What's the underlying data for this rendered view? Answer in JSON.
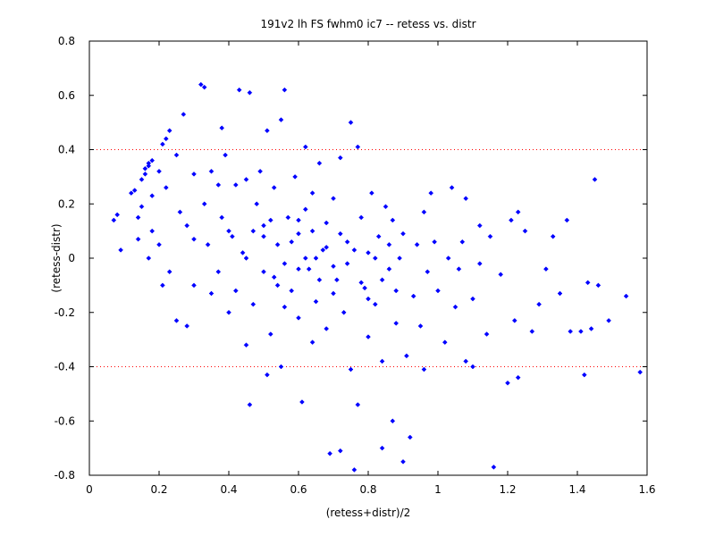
{
  "chart_data": {
    "type": "scatter",
    "title": "191v2 lh FS fwhm0 ic7 -- retess vs. distr",
    "xlabel": "(retess+distr)/2",
    "ylabel": "(retess-distr)",
    "xlim": [
      0,
      1.6
    ],
    "ylim": [
      -0.8,
      0.8
    ],
    "xticks": [
      0,
      0.2,
      0.4,
      0.6,
      0.8,
      1,
      1.2,
      1.4,
      1.6
    ],
    "xtick_labels": [
      "0",
      "0.2",
      "0.4",
      "0.6",
      "0.8",
      "1",
      "1.2",
      "1.4",
      "1.6"
    ],
    "yticks": [
      -0.8,
      -0.6,
      -0.4,
      -0.2,
      0,
      0.2,
      0.4,
      0.6,
      0.8
    ],
    "ytick_labels": [
      "-0.8",
      "-0.6",
      "-0.4",
      "-0.2",
      "0",
      "0.2",
      "0.4",
      "0.6",
      "0.8"
    ],
    "grid": false,
    "reference_lines": [
      {
        "y": 0.4,
        "color": "#ff0000",
        "style": "dotted"
      },
      {
        "y": -0.4,
        "color": "#ff0000",
        "style": "dotted"
      }
    ],
    "marker": {
      "shape": "diamond",
      "color": "#0000ff"
    },
    "points": [
      [
        0.07,
        0.14
      ],
      [
        0.08,
        0.16
      ],
      [
        0.09,
        0.03
      ],
      [
        0.12,
        0.24
      ],
      [
        0.13,
        0.25
      ],
      [
        0.14,
        0.15
      ],
      [
        0.14,
        0.07
      ],
      [
        0.15,
        0.19
      ],
      [
        0.15,
        0.29
      ],
      [
        0.16,
        0.31
      ],
      [
        0.16,
        0.33
      ],
      [
        0.17,
        0.34
      ],
      [
        0.17,
        0.35
      ],
      [
        0.18,
        0.36
      ],
      [
        0.18,
        0.23
      ],
      [
        0.18,
        0.1
      ],
      [
        0.17,
        0.0
      ],
      [
        0.2,
        0.32
      ],
      [
        0.21,
        0.42
      ],
      [
        0.22,
        0.44
      ],
      [
        0.23,
        0.47
      ],
      [
        0.22,
        0.26
      ],
      [
        0.2,
        0.05
      ],
      [
        0.21,
        -0.1
      ],
      [
        0.23,
        -0.05
      ],
      [
        0.25,
        0.38
      ],
      [
        0.27,
        0.53
      ],
      [
        0.26,
        0.17
      ],
      [
        0.25,
        -0.23
      ],
      [
        0.28,
        -0.25
      ],
      [
        0.28,
        0.12
      ],
      [
        0.3,
        0.31
      ],
      [
        0.3,
        0.07
      ],
      [
        0.3,
        -0.1
      ],
      [
        0.32,
        0.64
      ],
      [
        0.33,
        0.63
      ],
      [
        0.33,
        0.2
      ],
      [
        0.34,
        0.05
      ],
      [
        0.35,
        -0.13
      ],
      [
        0.35,
        0.32
      ],
      [
        0.37,
        0.27
      ],
      [
        0.37,
        -0.05
      ],
      [
        0.38,
        0.15
      ],
      [
        0.38,
        0.48
      ],
      [
        0.39,
        0.38
      ],
      [
        0.4,
        -0.2
      ],
      [
        0.41,
        0.08
      ],
      [
        0.42,
        0.27
      ],
      [
        0.42,
        -0.12
      ],
      [
        0.43,
        0.62
      ],
      [
        0.44,
        0.02
      ],
      [
        0.45,
        0.29
      ],
      [
        0.45,
        -0.32
      ],
      [
        0.46,
        0.61
      ],
      [
        0.46,
        -0.54
      ],
      [
        0.47,
        0.1
      ],
      [
        0.47,
        -0.17
      ],
      [
        0.48,
        0.2
      ],
      [
        0.49,
        0.32
      ],
      [
        0.5,
        -0.05
      ],
      [
        0.5,
        0.08
      ],
      [
        0.51,
        0.47
      ],
      [
        0.51,
        -0.43
      ],
      [
        0.52,
        0.14
      ],
      [
        0.52,
        -0.28
      ],
      [
        0.53,
        0.26
      ],
      [
        0.54,
        0.05
      ],
      [
        0.54,
        -0.1
      ],
      [
        0.55,
        0.51
      ],
      [
        0.55,
        -0.4
      ],
      [
        0.56,
        0.62
      ],
      [
        0.56,
        -0.02
      ],
      [
        0.57,
        0.15
      ],
      [
        0.58,
        -0.12
      ],
      [
        0.59,
        0.3
      ],
      [
        0.6,
        -0.22
      ],
      [
        0.6,
        0.09
      ],
      [
        0.61,
        -0.53
      ],
      [
        0.62,
        0.41
      ],
      [
        0.62,
        0.18
      ],
      [
        0.63,
        -0.04
      ],
      [
        0.64,
        0.24
      ],
      [
        0.64,
        -0.31
      ],
      [
        0.65,
        -0.16
      ],
      [
        0.66,
        0.35
      ],
      [
        0.67,
        0.03
      ],
      [
        0.68,
        -0.26
      ],
      [
        0.68,
        0.13
      ],
      [
        0.69,
        -0.72
      ],
      [
        0.7,
        0.22
      ],
      [
        0.71,
        -0.08
      ],
      [
        0.72,
        -0.71
      ],
      [
        0.72,
        0.37
      ],
      [
        0.73,
        -0.2
      ],
      [
        0.74,
        0.06
      ],
      [
        0.75,
        0.5
      ],
      [
        0.75,
        -0.41
      ],
      [
        0.76,
        -0.78
      ],
      [
        0.77,
        0.41
      ],
      [
        0.77,
        -0.54
      ],
      [
        0.78,
        0.15
      ],
      [
        0.79,
        -0.11
      ],
      [
        0.8,
        0.02
      ],
      [
        0.8,
        -0.29
      ],
      [
        0.81,
        0.24
      ],
      [
        0.82,
        -0.17
      ],
      [
        0.83,
        0.08
      ],
      [
        0.84,
        -0.38
      ],
      [
        0.84,
        -0.7
      ],
      [
        0.85,
        0.19
      ],
      [
        0.86,
        -0.04
      ],
      [
        0.87,
        -0.6
      ],
      [
        0.87,
        0.14
      ],
      [
        0.88,
        -0.24
      ],
      [
        0.89,
        0.0
      ],
      [
        0.9,
        0.09
      ],
      [
        0.9,
        -0.75
      ],
      [
        0.91,
        -0.36
      ],
      [
        0.92,
        -0.66
      ],
      [
        0.93,
        -0.14
      ],
      [
        0.94,
        0.05
      ],
      [
        0.95,
        -0.25
      ],
      [
        0.96,
        0.17
      ],
      [
        0.96,
        -0.41
      ],
      [
        0.97,
        -0.05
      ],
      [
        0.98,
        0.24
      ],
      [
        0.99,
        0.06
      ],
      [
        1.0,
        -0.12
      ],
      [
        1.02,
        -0.31
      ],
      [
        1.03,
        0.0
      ],
      [
        1.04,
        0.26
      ],
      [
        1.05,
        -0.18
      ],
      [
        1.06,
        -0.04
      ],
      [
        1.07,
        0.06
      ],
      [
        1.08,
        -0.38
      ],
      [
        1.08,
        0.22
      ],
      [
        1.1,
        -0.15
      ],
      [
        1.1,
        -0.4
      ],
      [
        1.12,
        0.12
      ],
      [
        1.12,
        -0.02
      ],
      [
        1.14,
        -0.28
      ],
      [
        1.15,
        0.08
      ],
      [
        1.16,
        -0.77
      ],
      [
        1.18,
        -0.06
      ],
      [
        1.2,
        -0.46
      ],
      [
        1.21,
        0.14
      ],
      [
        1.22,
        -0.23
      ],
      [
        1.23,
        0.17
      ],
      [
        1.23,
        -0.44
      ],
      [
        1.25,
        0.1
      ],
      [
        1.27,
        -0.27
      ],
      [
        1.29,
        -0.17
      ],
      [
        1.31,
        -0.04
      ],
      [
        1.33,
        0.08
      ],
      [
        1.35,
        -0.13
      ],
      [
        1.37,
        0.14
      ],
      [
        1.38,
        -0.27
      ],
      [
        1.41,
        -0.27
      ],
      [
        1.42,
        -0.43
      ],
      [
        1.43,
        -0.09
      ],
      [
        1.44,
        -0.26
      ],
      [
        1.45,
        0.29
      ],
      [
        1.46,
        -0.1
      ],
      [
        1.49,
        -0.23
      ],
      [
        1.54,
        -0.14
      ],
      [
        1.58,
        -0.42
      ],
      [
        0.4,
        0.1
      ],
      [
        0.45,
        0.0
      ],
      [
        0.5,
        0.12
      ],
      [
        0.53,
        -0.07
      ],
      [
        0.56,
        -0.18
      ],
      [
        0.58,
        0.06
      ],
      [
        0.6,
        -0.04
      ],
      [
        0.62,
        0.0
      ],
      [
        0.64,
        0.1
      ],
      [
        0.66,
        -0.08
      ],
      [
        0.68,
        0.04
      ],
      [
        0.7,
        -0.13
      ],
      [
        0.72,
        0.09
      ],
      [
        0.74,
        -0.02
      ],
      [
        0.76,
        0.03
      ],
      [
        0.78,
        -0.09
      ],
      [
        0.8,
        -0.15
      ],
      [
        0.82,
        0.0
      ],
      [
        0.84,
        -0.08
      ],
      [
        0.86,
        0.05
      ],
      [
        0.88,
        -0.12
      ],
      [
        0.6,
        0.14
      ],
      [
        0.65,
        0.0
      ],
      [
        0.7,
        -0.03
      ]
    ]
  }
}
